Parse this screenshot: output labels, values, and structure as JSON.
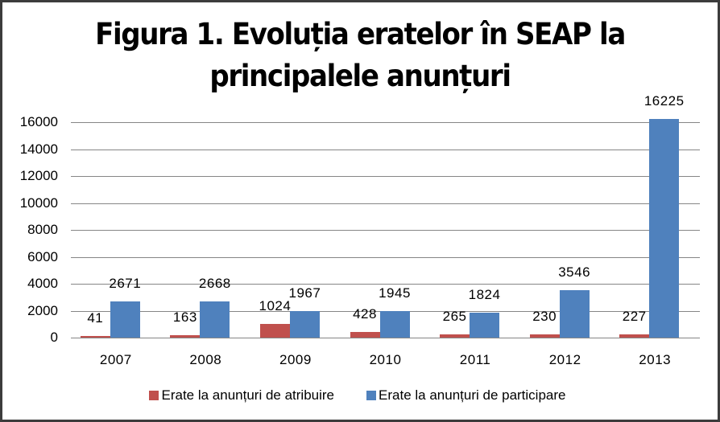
{
  "title_line1": "Figura 1. Evoluția eratelor în SEAP la",
  "title_line2": "principalele anunțuri",
  "colors": {
    "atribuire": "#c0504d",
    "participare": "#4f81bd",
    "grid": "#868686",
    "border": "#3c3c3c"
  },
  "legend": {
    "atribuire": "Erate la anunțuri de atribuire",
    "participare": "Erate la anunțuri de participare"
  },
  "y_ticks": [
    "0",
    "2000",
    "4000",
    "6000",
    "8000",
    "10000",
    "12000",
    "14000",
    "16000"
  ],
  "chart_data": {
    "type": "bar",
    "title": "Figura 1. Evoluția eratelor în SEAP la principalele anunțuri",
    "xlabel": "",
    "ylabel": "",
    "categories": [
      "2007",
      "2008",
      "2009",
      "2010",
      "2011",
      "2012",
      "2013"
    ],
    "series": [
      {
        "name": "Erate la anunțuri de atribuire",
        "color": "#c0504d",
        "values": [
          41,
          163,
          1024,
          428,
          265,
          230,
          227
        ]
      },
      {
        "name": "Erate la anunțuri de participare",
        "color": "#4f81bd",
        "values": [
          2671,
          2668,
          1967,
          1945,
          1824,
          3546,
          16225
        ]
      }
    ],
    "ylim": [
      0,
      16000
    ],
    "y_tick_step": 2000,
    "grid": true,
    "legend_position": "bottom",
    "data_labels": true
  }
}
